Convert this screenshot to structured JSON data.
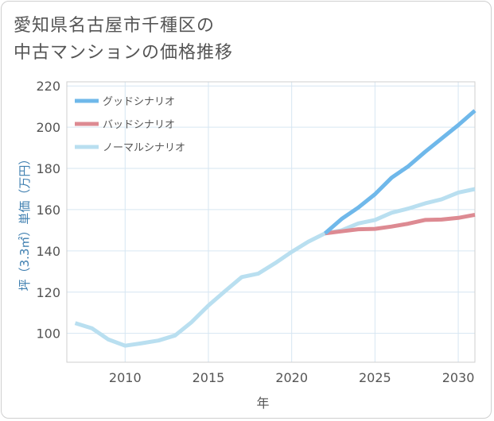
{
  "title_line1": "愛知県名古屋市千種区の",
  "title_line2": "中古マンションの価格推移",
  "chart_data": {
    "type": "line",
    "xlabel": "年",
    "ylabel": "坪（3.3㎡）単価（万円）",
    "xlim": [
      2006.5,
      2031
    ],
    "ylim": [
      86,
      222
    ],
    "xticks": [
      2010,
      2015,
      2020,
      2025,
      2030
    ],
    "yticks": [
      100,
      120,
      140,
      160,
      180,
      200,
      220
    ],
    "grid": true,
    "legend_position": "top-left",
    "series": [
      {
        "name": "グッドシナリオ",
        "color": "#6fb8ea",
        "x": [
          2022,
          2023,
          2024,
          2025,
          2026,
          2027,
          2028,
          2029,
          2030,
          2031
        ],
        "y": [
          148.5,
          155.5,
          161,
          167.5,
          175.5,
          181,
          188,
          194.5,
          201,
          208
        ]
      },
      {
        "name": "バッドシナリオ",
        "color": "#dd8a92",
        "x": [
          2022,
          2023,
          2024,
          2025,
          2026,
          2027,
          2028,
          2029,
          2030,
          2031
        ],
        "y": [
          148.5,
          149.5,
          150.5,
          150.7,
          151.8,
          153.2,
          155,
          155.2,
          156,
          157.5
        ]
      },
      {
        "name": "ノーマルシナリオ",
        "color": "#b9dff0",
        "x": [
          2007,
          2008,
          2009,
          2010,
          2011,
          2012,
          2013,
          2014,
          2015,
          2016,
          2017,
          2018,
          2019,
          2020,
          2021,
          2022,
          2023,
          2024,
          2025,
          2026,
          2027,
          2028,
          2029,
          2030,
          2031
        ],
        "y": [
          105,
          102.5,
          97,
          94,
          95.2,
          96.5,
          99,
          105.5,
          113.5,
          120.5,
          127.3,
          129,
          134,
          139.5,
          144.5,
          148.5,
          150,
          153.3,
          155,
          158.5,
          160.5,
          163,
          165,
          168.3,
          170
        ]
      }
    ]
  }
}
